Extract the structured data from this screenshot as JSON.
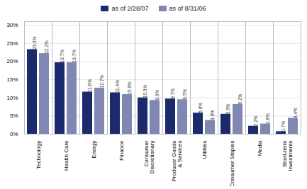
{
  "chart_data": {
    "type": "bar",
    "categories": [
      "Technology",
      "Health Care",
      "Energy",
      "Finance",
      "Consumer\nDiscretionary",
      "Producer Goods\n& Services",
      "Utilities",
      "Consumer Staples",
      "Media",
      "Short-term\nInvestments"
    ],
    "series": [
      {
        "name": "as of 2/28/07",
        "color": "#1b2a6b",
        "values": [
          23.3,
          19.7,
          11.6,
          11.4,
          10.0,
          9.7,
          5.8,
          5.5,
          2.2,
          0.7
        ],
        "value_labels": [
          "23.3%",
          "19.7%",
          "11.6%",
          "11.4%",
          "10.0%",
          "9.7%",
          "5.8%",
          "5.5%",
          "2.2%",
          "0.7%"
        ]
      },
      {
        "name": "as of 8/31/06",
        "color": "#8087b3",
        "values": [
          22.2,
          19.7,
          12.7,
          10.9,
          9.3,
          9.5,
          3.8,
          8.2,
          2.8,
          4.4
        ],
        "value_labels": [
          "22.2%",
          "19.7%",
          "12.7%",
          "10.9%",
          "9.3%",
          "9.5%",
          "3.8%",
          "8.2%",
          "2.8%",
          "4.4%"
        ]
      }
    ],
    "ylim": [
      0,
      31
    ],
    "yticks": [
      {
        "value": 0,
        "label": "0%"
      },
      {
        "value": 5,
        "label": "5%"
      },
      {
        "value": 10,
        "label": "10%"
      },
      {
        "value": 15,
        "label": "15%"
      },
      {
        "value": 20,
        "label": "20%"
      },
      {
        "value": 25,
        "label": "25%"
      },
      {
        "value": 30,
        "label": "30%"
      }
    ],
    "grid": true,
    "legend": "top",
    "data_labels": true
  }
}
